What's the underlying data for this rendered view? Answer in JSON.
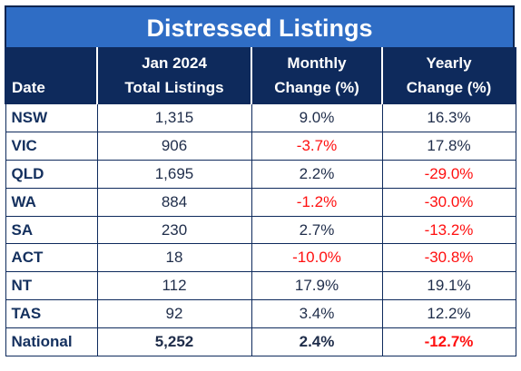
{
  "title": "Distressed Listings",
  "headers": {
    "date": "Date",
    "listings_line1": "Jan 2024",
    "listings_line2": "Total Listings",
    "monthly_line1": "Monthly",
    "monthly_line2": "Change (%)",
    "yearly_line1": "Yearly",
    "yearly_line2": "Change (%)"
  },
  "rows": [
    {
      "state": "NSW",
      "listings": "1,315",
      "monthly": "9.0%",
      "yearly": "16.3%"
    },
    {
      "state": "VIC",
      "listings": "906",
      "monthly": "-3.7%",
      "yearly": "17.8%"
    },
    {
      "state": "QLD",
      "listings": "1,695",
      "monthly": "2.2%",
      "yearly": "-29.0%"
    },
    {
      "state": "WA",
      "listings": "884",
      "monthly": "-1.2%",
      "yearly": "-30.0%"
    },
    {
      "state": "SA",
      "listings": "230",
      "monthly": "2.7%",
      "yearly": "-13.2%"
    },
    {
      "state": "ACT",
      "listings": "18",
      "monthly": "-10.0%",
      "yearly": "-30.8%"
    },
    {
      "state": "NT",
      "listings": "112",
      "monthly": "17.9%",
      "yearly": "19.1%"
    },
    {
      "state": "TAS",
      "listings": "92",
      "monthly": "3.4%",
      "yearly": "12.2%"
    },
    {
      "state": "National",
      "listings": "5,252",
      "monthly": "2.4%",
      "yearly": "-12.7%"
    }
  ],
  "colors": {
    "title_bg": "#2f6dc5",
    "header_bg": "#0e2a5c",
    "negative": "#ff1010",
    "text": "#1f2d4a"
  }
}
